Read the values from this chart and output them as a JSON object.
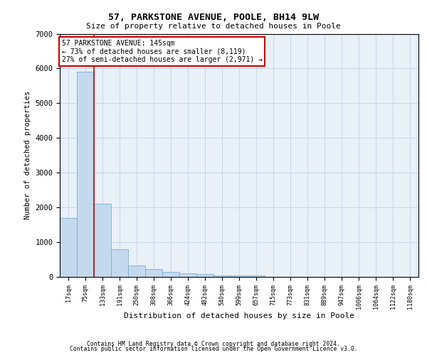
{
  "title1": "57, PARKSTONE AVENUE, POOLE, BH14 9LW",
  "title2": "Size of property relative to detached houses in Poole",
  "xlabel": "Distribution of detached houses by size in Poole",
  "ylabel": "Number of detached properties",
  "bar_color": "#c5d9ee",
  "bar_edge_color": "#7aadd4",
  "grid_color": "#c8d8ea",
  "background_color": "#e8f0f8",
  "categories": [
    "17sqm",
    "75sqm",
    "133sqm",
    "191sqm",
    "250sqm",
    "308sqm",
    "366sqm",
    "424sqm",
    "482sqm",
    "540sqm",
    "599sqm",
    "657sqm",
    "715sqm",
    "773sqm",
    "831sqm",
    "889sqm",
    "947sqm",
    "1006sqm",
    "1064sqm",
    "1122sqm",
    "1180sqm"
  ],
  "values": [
    1700,
    5900,
    2100,
    800,
    330,
    230,
    150,
    110,
    80,
    50,
    50,
    50,
    0,
    0,
    0,
    0,
    0,
    0,
    0,
    0,
    0
  ],
  "red_line_x": 1.5,
  "red_line_color": "#cc0000",
  "annotation_text": "57 PARKSTONE AVENUE: 145sqm\n← 73% of detached houses are smaller (8,119)\n27% of semi-detached houses are larger (2,971) →",
  "annotation_border_color": "#cc0000",
  "ylim": [
    0,
    7000
  ],
  "yticks": [
    0,
    1000,
    2000,
    3000,
    4000,
    5000,
    6000,
    7000
  ],
  "footer1": "Contains HM Land Registry data © Crown copyright and database right 2024.",
  "footer2": "Contains public sector information licensed under the Open Government Licence v3.0."
}
